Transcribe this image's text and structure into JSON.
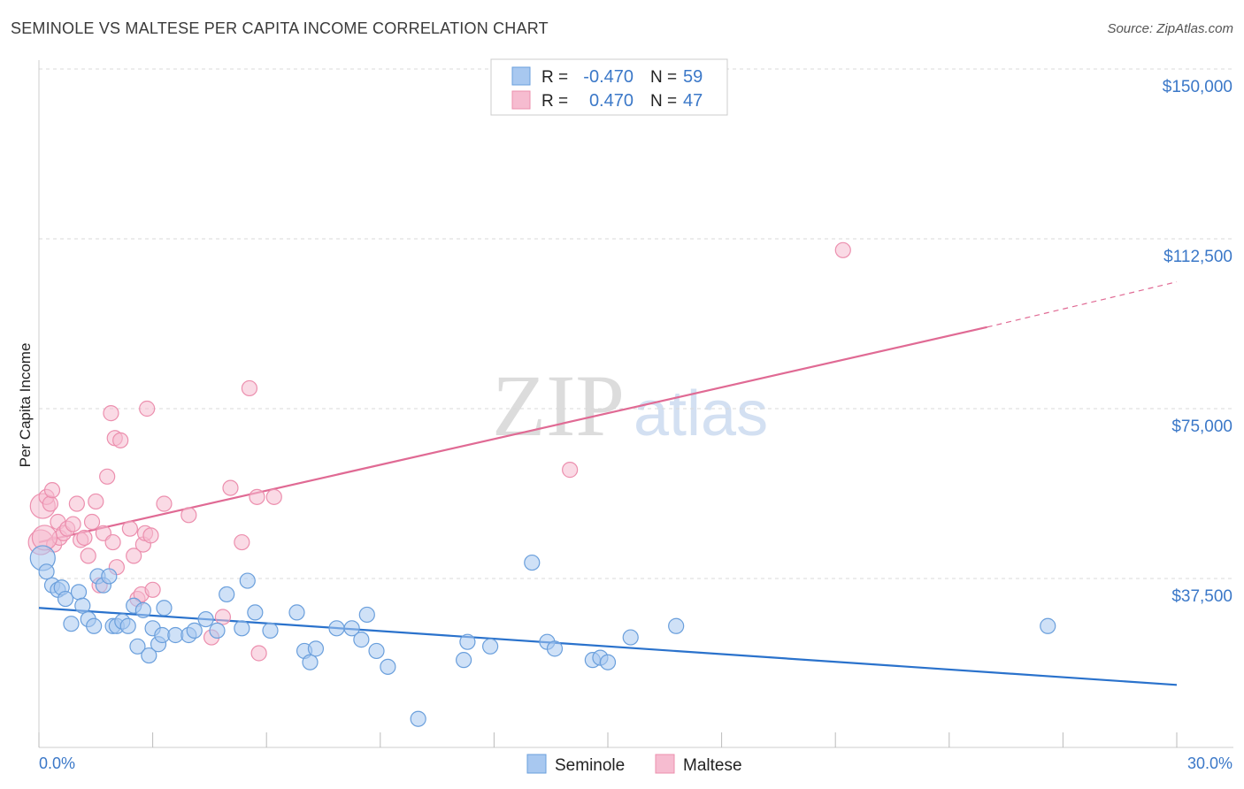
{
  "title": "SEMINOLE VS MALTESE PER CAPITA INCOME CORRELATION CHART",
  "source": "Source: ZipAtlas.com",
  "watermark": {
    "zip": "ZIP",
    "atlas": "atlas"
  },
  "colors": {
    "seminole_fill": "#a8c8f0",
    "seminole_stroke": "#6a9fdc",
    "seminole_line": "#2a72cc",
    "maltese_fill": "#f6bcd0",
    "maltese_stroke": "#ec8fae",
    "maltese_line": "#e06a94",
    "axis_text": "#3b78c8",
    "grid": "#d8d8d8"
  },
  "legend_stats": {
    "r_label": "R =",
    "n_label": "N =",
    "seminole": {
      "r": "-0.470",
      "n": "59"
    },
    "maltese": {
      "r": "0.470",
      "n": "47"
    }
  },
  "chart_data": {
    "type": "scatter",
    "title": "SEMINOLE VS MALTESE PER CAPITA INCOME CORRELATION CHART",
    "xlabel": "",
    "ylabel": "Per Capita Income",
    "xlim": [
      0,
      30
    ],
    "ylim": [
      0,
      155000
    ],
    "x_tick_labels": [
      "0.0%",
      "30.0%"
    ],
    "y_ticks": [
      37500,
      75000,
      112500,
      150000
    ],
    "y_tick_labels": [
      "$37,500",
      "$75,000",
      "$112,500",
      "$150,000"
    ],
    "grid": true,
    "legend_placement": "bottom-center",
    "series": [
      {
        "name": "Seminole",
        "points": [
          [
            0.1,
            42000
          ],
          [
            0.2,
            39000
          ],
          [
            0.35,
            36000
          ],
          [
            0.5,
            35000
          ],
          [
            0.6,
            35500
          ],
          [
            0.7,
            33000
          ],
          [
            0.85,
            27500
          ],
          [
            1.05,
            34500
          ],
          [
            1.15,
            31500
          ],
          [
            1.3,
            28500
          ],
          [
            1.45,
            27000
          ],
          [
            1.55,
            38000
          ],
          [
            1.7,
            36000
          ],
          [
            1.85,
            38000
          ],
          [
            1.95,
            27000
          ],
          [
            2.05,
            27000
          ],
          [
            2.2,
            28000
          ],
          [
            2.35,
            27000
          ],
          [
            2.5,
            31500
          ],
          [
            2.6,
            22500
          ],
          [
            2.75,
            30500
          ],
          [
            2.9,
            20500
          ],
          [
            3.0,
            26500
          ],
          [
            3.15,
            23000
          ],
          [
            3.25,
            25000
          ],
          [
            3.3,
            31000
          ],
          [
            3.6,
            25000
          ],
          [
            3.95,
            25000
          ],
          [
            4.1,
            26000
          ],
          [
            4.4,
            28500
          ],
          [
            4.7,
            26000
          ],
          [
            4.95,
            34000
          ],
          [
            5.35,
            26500
          ],
          [
            5.5,
            37000
          ],
          [
            5.7,
            30000
          ],
          [
            6.1,
            26000
          ],
          [
            6.8,
            30000
          ],
          [
            7.0,
            21500
          ],
          [
            7.15,
            19000
          ],
          [
            7.3,
            22000
          ],
          [
            7.85,
            26500
          ],
          [
            8.25,
            26500
          ],
          [
            8.5,
            24000
          ],
          [
            8.65,
            29500
          ],
          [
            8.9,
            21500
          ],
          [
            9.2,
            18000
          ],
          [
            10.0,
            6500
          ],
          [
            11.2,
            19500
          ],
          [
            11.3,
            23500
          ],
          [
            11.9,
            22500
          ],
          [
            13.0,
            41000
          ],
          [
            13.4,
            23500
          ],
          [
            13.6,
            22000
          ],
          [
            14.6,
            19500
          ],
          [
            14.8,
            20000
          ],
          [
            15.0,
            19000
          ],
          [
            15.6,
            24500
          ],
          [
            16.8,
            27000
          ],
          [
            26.6,
            27000
          ]
        ],
        "trend": [
          [
            0,
            31000
          ],
          [
            30,
            14000
          ]
        ]
      },
      {
        "name": "Maltese",
        "points": [
          [
            0.05,
            45500
          ],
          [
            0.1,
            53500
          ],
          [
            0.2,
            55500
          ],
          [
            0.3,
            54000
          ],
          [
            0.35,
            57000
          ],
          [
            0.4,
            45000
          ],
          [
            0.5,
            50000
          ],
          [
            0.55,
            46500
          ],
          [
            0.65,
            47500
          ],
          [
            0.75,
            48500
          ],
          [
            0.9,
            49500
          ],
          [
            1.0,
            54000
          ],
          [
            1.1,
            46000
          ],
          [
            1.2,
            46500
          ],
          [
            1.3,
            42500
          ],
          [
            1.4,
            50000
          ],
          [
            1.5,
            54500
          ],
          [
            1.6,
            36000
          ],
          [
            1.7,
            47500
          ],
          [
            1.8,
            60000
          ],
          [
            1.9,
            74000
          ],
          [
            1.95,
            45500
          ],
          [
            2.0,
            68500
          ],
          [
            2.05,
            40000
          ],
          [
            2.15,
            68000
          ],
          [
            2.4,
            48500
          ],
          [
            2.5,
            42500
          ],
          [
            2.6,
            33000
          ],
          [
            2.7,
            34000
          ],
          [
            2.75,
            45000
          ],
          [
            2.8,
            47500
          ],
          [
            2.85,
            75000
          ],
          [
            2.95,
            47000
          ],
          [
            3.0,
            35000
          ],
          [
            3.3,
            54000
          ],
          [
            3.95,
            51500
          ],
          [
            4.55,
            24500
          ],
          [
            4.85,
            29000
          ],
          [
            5.05,
            57500
          ],
          [
            5.35,
            45500
          ],
          [
            5.55,
            79500
          ],
          [
            5.75,
            55500
          ],
          [
            5.8,
            21000
          ],
          [
            6.2,
            55500
          ],
          [
            14.0,
            61500
          ],
          [
            21.2,
            110000
          ],
          [
            0.15,
            46500
          ]
        ],
        "trend": [
          [
            0,
            45500
          ],
          [
            25,
            93000
          ]
        ],
        "trend_extension": [
          [
            25,
            93000
          ],
          [
            30,
            103000
          ]
        ]
      }
    ]
  }
}
